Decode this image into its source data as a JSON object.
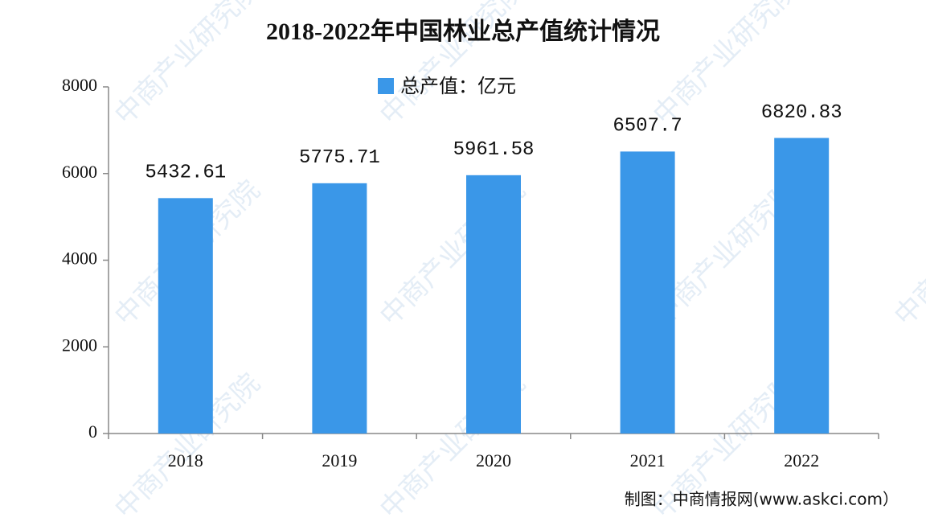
{
  "chart_data": {
    "type": "bar",
    "title": "2018-2022年中国林业总产值统计情况",
    "categories": [
      "2018",
      "2019",
      "2020",
      "2021",
      "2022"
    ],
    "series": [
      {
        "name": "总产值：亿元",
        "color": "#3a97e8",
        "values": [
          5432.61,
          5775.71,
          5961.58,
          6507.7,
          6820.83
        ]
      }
    ],
    "ylim": [
      0,
      8000
    ],
    "yticks": [
      0,
      2000,
      4000,
      6000,
      8000
    ],
    "legend": "top",
    "source": "制图：中商情报网(www.askci.com）",
    "watermark": "中商产业研究院"
  }
}
